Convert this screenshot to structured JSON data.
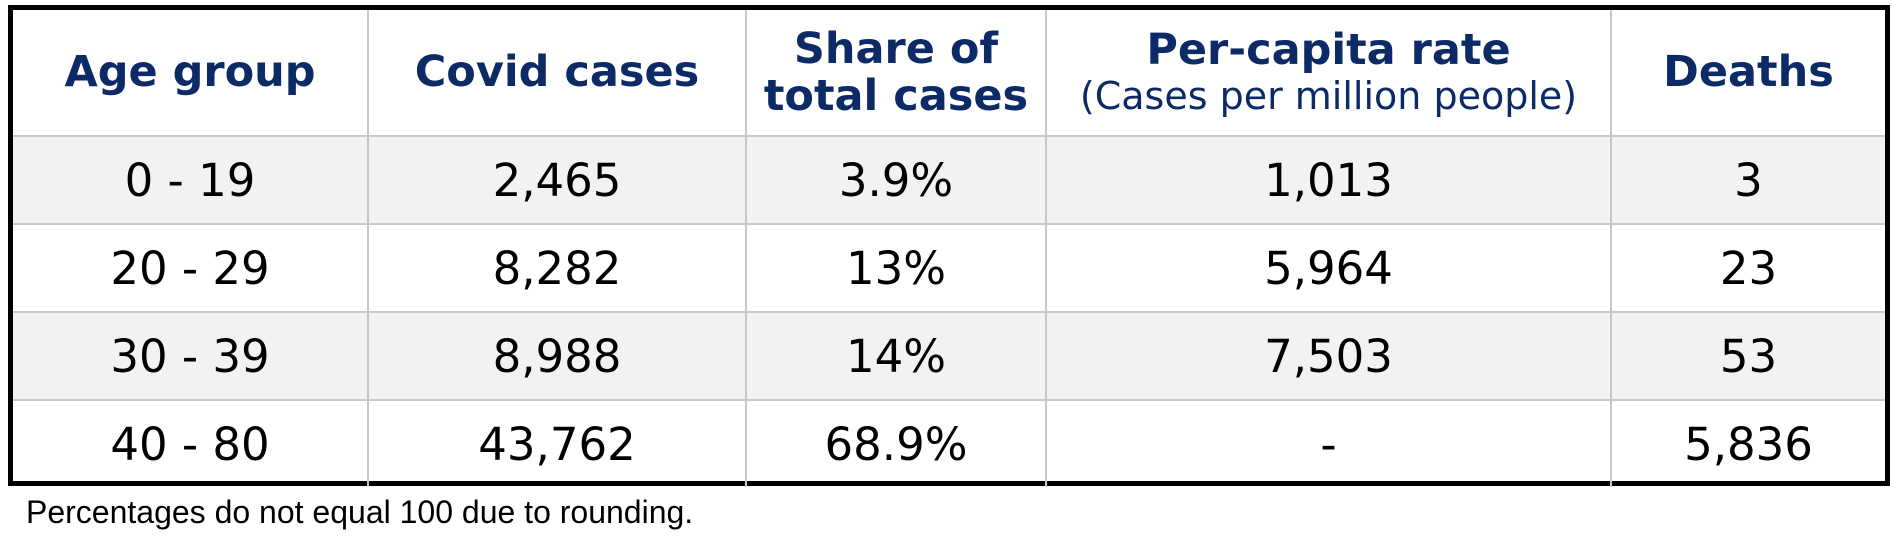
{
  "table": {
    "headers": [
      {
        "title": "Age group",
        "subtitle": ""
      },
      {
        "title": "Covid cases",
        "subtitle": ""
      },
      {
        "title": "Share of\ntotal cases",
        "subtitle": ""
      },
      {
        "title": "Per-capita rate",
        "subtitle": "(Cases per million people)"
      },
      {
        "title": "Deaths",
        "subtitle": ""
      }
    ],
    "rows": [
      [
        "0 - 19",
        "2,465",
        "3.9%",
        "1,013",
        "3"
      ],
      [
        "20 - 29",
        "8,282",
        "13%",
        "5,964",
        "23"
      ],
      [
        "30 - 39",
        "8,988",
        "14%",
        "7,503",
        "53"
      ],
      [
        "40 - 80",
        "43,762",
        "68.9%",
        "-",
        "5,836"
      ]
    ]
  },
  "footnote": "Percentages do not equal 100 due to rounding.",
  "colors": {
    "header_text": "#0b2a66",
    "alt_row_bg": "#f2f2f2",
    "grid": "#c8c8c8",
    "frame": "#000000"
  }
}
